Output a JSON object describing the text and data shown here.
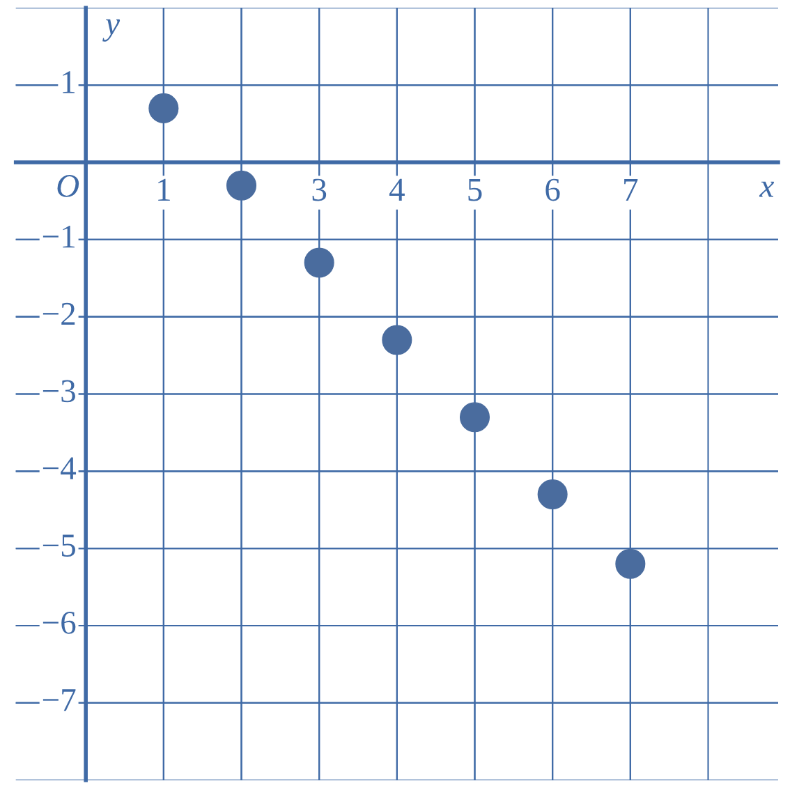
{
  "chart_data": {
    "type": "scatter",
    "xlabel": "x",
    "ylabel": "y",
    "annotations": [
      "O"
    ],
    "x": [
      1,
      2,
      3,
      4,
      5,
      6,
      7
    ],
    "series": [
      {
        "color": "#4a6c9e",
        "values": [
          0.7,
          -0.3,
          -1.3,
          -2.3,
          -3.3,
          -4.3,
          -5.2
        ]
      }
    ],
    "xlim": [
      -0.9,
      8.9
    ],
    "ylim": [
      -8.0,
      2.0
    ],
    "xticks": [
      1,
      {
        "value": 2,
        "label": null
      },
      3,
      4,
      5,
      6,
      7
    ],
    "yticks": [
      1,
      {
        "value": -1,
        "label": "−1"
      },
      {
        "value": -2,
        "label": "−2"
      },
      {
        "value": -3,
        "label": "−3"
      },
      {
        "value": -4,
        "label": "−4"
      },
      {
        "value": -5,
        "label": "−5"
      },
      {
        "value": -6,
        "label": "−6"
      },
      {
        "value": -7,
        "label": "−7"
      }
    ],
    "grid": true,
    "marker": "circle",
    "legend": false
  }
}
